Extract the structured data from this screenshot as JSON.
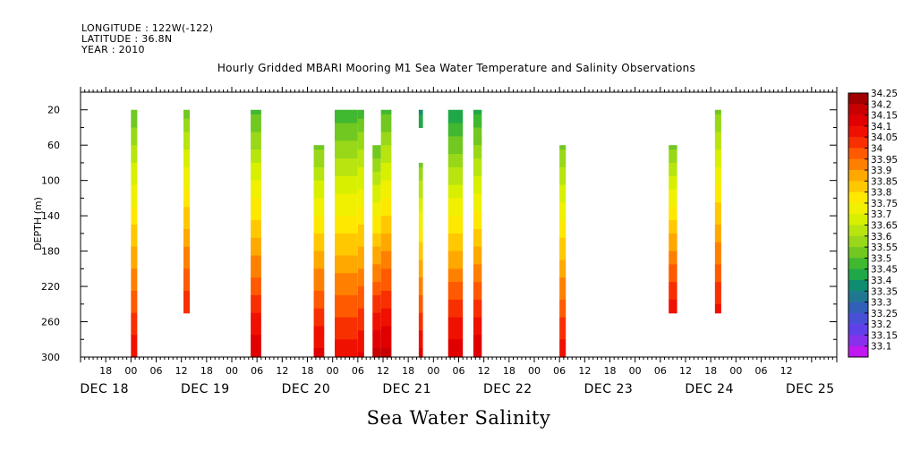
{
  "header": {
    "longitude": "LONGITUDE : 122W(-122)",
    "latitude": "LATITUDE : 36.8N",
    "year": "YEAR : 2010"
  },
  "chart_data": {
    "type": "heatmap",
    "title": "Hourly Gridded MBARI Mooring M1 Sea Water Temperature and Salinity Observations",
    "footer": "Sea Water Salinity",
    "ylabel": "DEPTH (m)",
    "xlabel": "",
    "x_unit": "hours since DEC 18 00:00",
    "xlim": [
      -12,
      168
    ],
    "ylim": [
      300,
      0
    ],
    "y_ticks": [
      20,
      60,
      100,
      140,
      180,
      220,
      260,
      300
    ],
    "hour_labels": [
      "18",
      "00",
      "06",
      "12",
      "18",
      "00",
      "06",
      "12",
      "18",
      "00",
      "06",
      "12",
      "18",
      "00",
      "06",
      "12",
      "18",
      "00",
      "06",
      "12",
      "18",
      "00",
      "06",
      "12",
      "18",
      "00",
      "06",
      "12"
    ],
    "day_labels": [
      "DEC 18",
      "DEC 19",
      "DEC 20",
      "DEC 21",
      "DEC 22",
      "DEC 23",
      "DEC 24",
      "DEC 25"
    ],
    "colorbar": {
      "labels": [
        "34.25",
        "34.2",
        "34.15",
        "34.1",
        "34.05",
        "34",
        "33.95",
        "33.9",
        "33.85",
        "33.8",
        "33.75",
        "33.7",
        "33.65",
        "33.6",
        "33.55",
        "33.5",
        "33.45",
        "33.4",
        "33.35",
        "33.3",
        "33.25",
        "33.2",
        "33.15",
        "33.1"
      ],
      "colors": [
        "#a00000",
        "#c80000",
        "#e00000",
        "#f01000",
        "#f83000",
        "#ff5a00",
        "#ff8000",
        "#ffa800",
        "#ffc800",
        "#ffe800",
        "#f0f000",
        "#d8f000",
        "#b8e410",
        "#98d818",
        "#70c820",
        "#40b830",
        "#20a848",
        "#108c70",
        "#207890",
        "#3060b8",
        "#4850d8",
        "#6040e8",
        "#8830ec",
        "#c018f0"
      ],
      "vmin": 33.1,
      "vmax": 34.25
    },
    "columns": [
      {
        "t": [
          0,
          1.5
        ],
        "top": 20,
        "bottom": 300,
        "s_top": 33.52,
        "s_bottom": 34.12
      },
      {
        "t": [
          12.5,
          14
        ],
        "top": 20,
        "bottom": 250,
        "s_top": 33.55,
        "s_bottom": 34.08
      },
      {
        "t": [
          28.5,
          31
        ],
        "top": 20,
        "bottom": 300,
        "s_top": 33.5,
        "s_bottom": 34.18
      },
      {
        "t": [
          43.5,
          46
        ],
        "top": 60,
        "bottom": 300,
        "s_top": 33.55,
        "s_bottom": 34.15
      },
      {
        "t": [
          48.5,
          54
        ],
        "top": 20,
        "bottom": 300,
        "s_top": 33.48,
        "s_bottom": 34.12
      },
      {
        "t": [
          54,
          55.5
        ],
        "top": 20,
        "bottom": 300,
        "s_top": 33.5,
        "s_bottom": 34.14
      },
      {
        "t": [
          57.5,
          59.5
        ],
        "top": 60,
        "bottom": 300,
        "s_top": 33.52,
        "s_bottom": 34.2
      },
      {
        "t": [
          59.5,
          62
        ],
        "top": 20,
        "bottom": 300,
        "s_top": 33.5,
        "s_bottom": 34.2
      },
      {
        "t": [
          68.5,
          69.5
        ],
        "top": 20,
        "bottom": 40,
        "s_top": 33.42,
        "s_bottom": 33.45
      },
      {
        "t": [
          68.5,
          69.5
        ],
        "top": 80,
        "bottom": 300,
        "s_top": 33.55,
        "s_bottom": 34.15
      },
      {
        "t": [
          75.5,
          79
        ],
        "top": 20,
        "bottom": 300,
        "s_top": 33.42,
        "s_bottom": 34.18
      },
      {
        "t": [
          81.5,
          83.5
        ],
        "top": 20,
        "bottom": 300,
        "s_top": 33.45,
        "s_bottom": 34.18
      },
      {
        "t": [
          102,
          103.5
        ],
        "top": 60,
        "bottom": 300,
        "s_top": 33.55,
        "s_bottom": 34.12
      },
      {
        "t": [
          128,
          130
        ],
        "top": 60,
        "bottom": 250,
        "s_top": 33.55,
        "s_bottom": 34.12
      },
      {
        "t": [
          139,
          140.5
        ],
        "top": 20,
        "bottom": 250,
        "s_top": 33.55,
        "s_bottom": 34.1
      }
    ]
  }
}
